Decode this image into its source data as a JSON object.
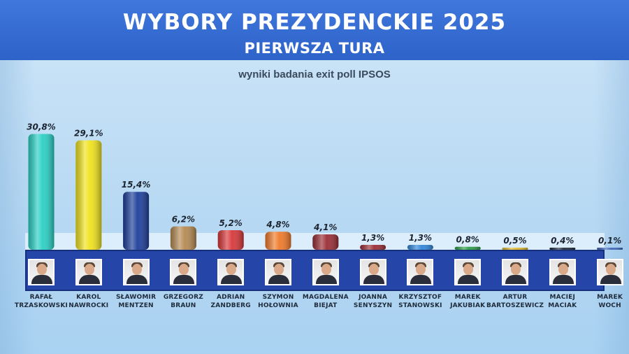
{
  "header": {
    "title": "WYBORY PREZYDENCKIE 2025",
    "subtitle": "PIERWSZA TURA"
  },
  "source_note": "wyniki badania exit poll IPSOS",
  "colors": {
    "header_bg": "#2e63c9",
    "name_strip": "#2546a8"
  },
  "chart_data": {
    "type": "bar",
    "title": "WYBORY PREZYDENCKIE 2025",
    "subtitle": "PIERWSZA TURA",
    "source": "wyniki badania exit poll IPSOS",
    "categories": [
      "RAFAŁ TRZASKOWSKI",
      "KAROL NAWROCKI",
      "SŁAWOMIR MENTZEN",
      "GRZEGORZ BRAUN",
      "ADRIAN ZANDBERG",
      "SZYMON HOŁOWNIA",
      "MAGDALENA BIEJAT",
      "JOANNA SENYSZYN",
      "KRZYSZTOF STANOWSKI",
      "MAREK JAKUBIAK",
      "ARTUR BARTOSZEWICZ",
      "MACIEJ MACIAK",
      "MAREK WOCH"
    ],
    "values": [
      30.8,
      29.1,
      15.4,
      6.2,
      5.2,
      4.8,
      4.1,
      1.3,
      1.3,
      0.8,
      0.5,
      0.4,
      0.1
    ],
    "value_labels": [
      "30,8%",
      "29,1%",
      "15,4%",
      "6,2%",
      "5,2%",
      "4,8%",
      "4,1%",
      "1,3%",
      "1,3%",
      "0,8%",
      "0,5%",
      "0,4%",
      "0,1%"
    ],
    "bar_colors": [
      "#2ad0c4",
      "#f0e21e",
      "#1e3f9a",
      "#b58a52",
      "#d8383a",
      "#ef7a2a",
      "#9a2e36",
      "#9a2e36",
      "#2f86d9",
      "#2e9a48",
      "#e2b82a",
      "#222a3a",
      "#3f67b8"
    ],
    "ylim": [
      0,
      32
    ],
    "xlabel": "",
    "ylabel": "",
    "grid": false,
    "legend": "none"
  },
  "candidates": [
    {
      "first": "RAFAŁ",
      "last": "TRZASKOWSKI"
    },
    {
      "first": "KAROL",
      "last": "NAWROCKI"
    },
    {
      "first": "SŁAWOMIR",
      "last": "MENTZEN"
    },
    {
      "first": "GRZEGORZ",
      "last": "BRAUN"
    },
    {
      "first": "ADRIAN",
      "last": "ZANDBERG"
    },
    {
      "first": "SZYMON",
      "last": "HOŁOWNIA"
    },
    {
      "first": "MAGDALENA",
      "last": "BIEJAT"
    },
    {
      "first": "JOANNA",
      "last": "SENYSZYN"
    },
    {
      "first": "KRZYSZTOF",
      "last": "STANOWSKI"
    },
    {
      "first": "MAREK",
      "last": "JAKUBIAK"
    },
    {
      "first": "ARTUR",
      "last": "BARTOSZEWICZ"
    },
    {
      "first": "MACIEJ",
      "last": "MACIAK"
    },
    {
      "first": "MAREK",
      "last": "WOCH"
    }
  ]
}
